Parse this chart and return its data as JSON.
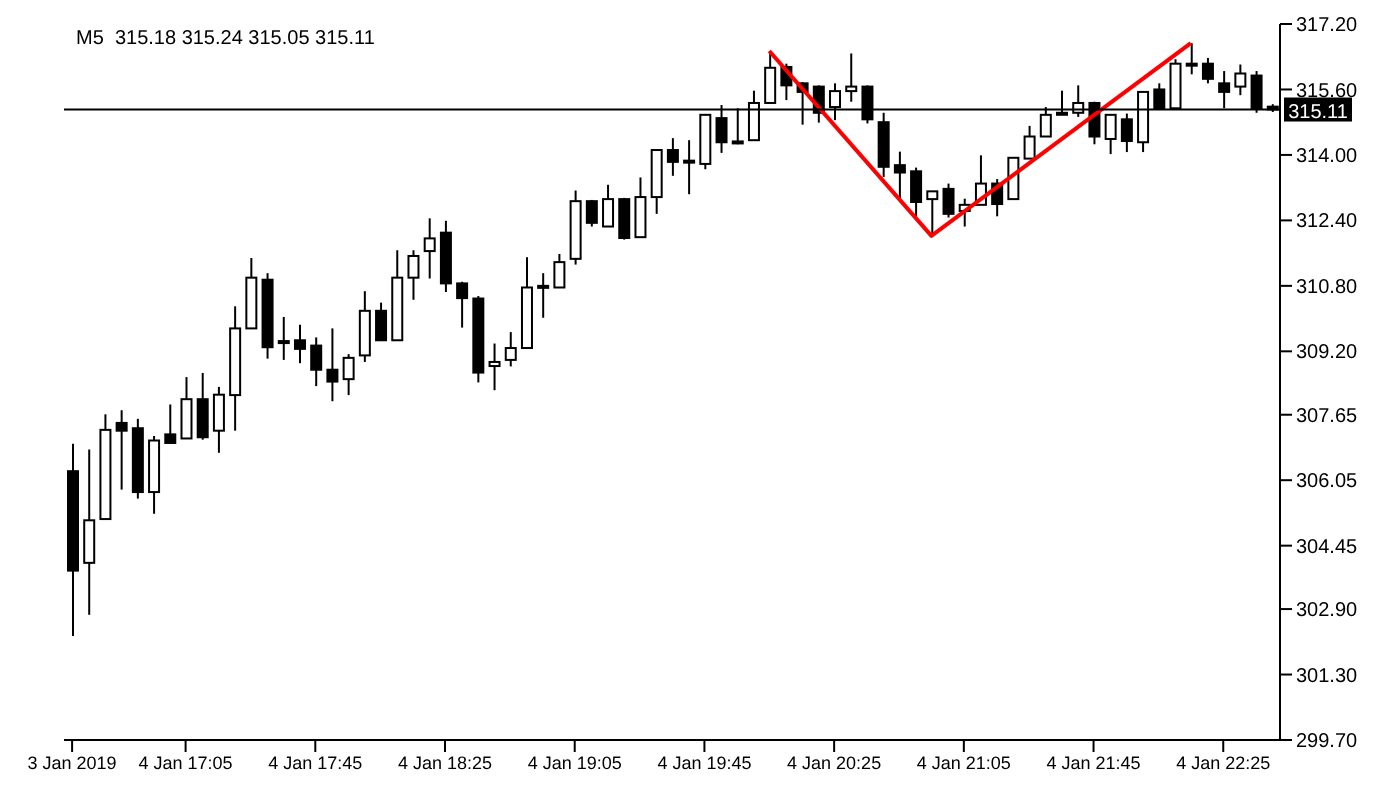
{
  "chart_data": {
    "type": "candlestick",
    "title": "M5  315.18 315.24 315.05 315.11",
    "color": "#000000",
    "categories": [
      "3 Jan 2019",
      null,
      null,
      null,
      null,
      null,
      null,
      "4 Jan 17:05",
      null,
      null,
      null,
      null,
      null,
      null,
      null,
      "4 Jan 17:45",
      null,
      null,
      null,
      null,
      null,
      null,
      null,
      "4 Jan 18:25",
      null,
      null,
      null,
      null,
      null,
      null,
      null,
      "4 Jan 19:05",
      null,
      null,
      null,
      null,
      null,
      null,
      null,
      "4 Jan 19:45",
      null,
      null,
      null,
      null,
      null,
      null,
      null,
      "4 Jan 20:25",
      null,
      null,
      null,
      null,
      null,
      null,
      null,
      "4 Jan 21:05",
      null,
      null,
      null,
      null,
      null,
      null,
      null,
      "4 Jan 21:45",
      null,
      null,
      null,
      null,
      null,
      null,
      null,
      "4 Jan 22:25",
      null,
      null,
      null
    ],
    "ohlc": [
      [
        306.27,
        306.94,
        302.24,
        303.84
      ],
      [
        304.03,
        306.8,
        302.76,
        305.07
      ],
      [
        305.1,
        307.66,
        305.1,
        307.28
      ],
      [
        307.45,
        307.76,
        305.82,
        307.26
      ],
      [
        307.32,
        307.55,
        305.6,
        305.76
      ],
      [
        305.76,
        307.13,
        305.23,
        307.02
      ],
      [
        307.17,
        307.9,
        306.96,
        306.96
      ],
      [
        307.07,
        308.57,
        307.07,
        308.03
      ],
      [
        308.03,
        308.67,
        307.04,
        307.1
      ],
      [
        307.26,
        308.33,
        306.72,
        308.14
      ],
      [
        308.13,
        310.3,
        307.26,
        309.76
      ],
      [
        309.76,
        311.48,
        309.76,
        311.0
      ],
      [
        310.95,
        311.11,
        309.02,
        309.3
      ],
      [
        309.45,
        310.04,
        308.99,
        309.41
      ],
      [
        309.47,
        309.85,
        308.91,
        309.26
      ],
      [
        309.34,
        309.54,
        308.35,
        308.75
      ],
      [
        308.75,
        309.76,
        307.98,
        308.46
      ],
      [
        308.52,
        309.13,
        308.13,
        309.04
      ],
      [
        309.1,
        310.67,
        308.94,
        310.19
      ],
      [
        310.19,
        310.39,
        309.47,
        309.47
      ],
      [
        309.47,
        311.67,
        309.47,
        311.0
      ],
      [
        311.0,
        311.67,
        310.46,
        311.53
      ],
      [
        311.65,
        312.45,
        310.98,
        311.96
      ],
      [
        312.1,
        312.39,
        310.65,
        310.86
      ],
      [
        310.86,
        310.9,
        309.78,
        310.5
      ],
      [
        310.49,
        310.55,
        308.44,
        308.68
      ],
      [
        308.84,
        309.39,
        308.25,
        308.94
      ],
      [
        308.99,
        309.67,
        308.83,
        309.28
      ],
      [
        309.28,
        311.5,
        309.28,
        310.76
      ],
      [
        310.8,
        311.11,
        310.02,
        310.76
      ],
      [
        310.76,
        311.58,
        310.76,
        311.38
      ],
      [
        311.46,
        313.13,
        311.32,
        312.87
      ],
      [
        312.87,
        312.9,
        312.25,
        312.34
      ],
      [
        312.25,
        313.27,
        312.25,
        312.92
      ],
      [
        312.92,
        312.95,
        311.93,
        311.97
      ],
      [
        311.99,
        313.45,
        311.99,
        312.97
      ],
      [
        312.97,
        314.12,
        312.56,
        314.12
      ],
      [
        314.12,
        314.41,
        313.49,
        313.83
      ],
      [
        313.86,
        314.36,
        313.04,
        313.82
      ],
      [
        313.78,
        315.0,
        313.65,
        314.98
      ],
      [
        314.9,
        315.22,
        314.05,
        314.31
      ],
      [
        314.33,
        315.14,
        314.26,
        314.29
      ],
      [
        314.36,
        315.57,
        314.36,
        315.27
      ],
      [
        315.27,
        316.54,
        315.27,
        316.13
      ],
      [
        316.15,
        316.23,
        315.34,
        315.7
      ],
      [
        315.75,
        315.78,
        314.74,
        315.54
      ],
      [
        315.67,
        315.7,
        314.79,
        315.03
      ],
      [
        315.17,
        315.75,
        314.85,
        315.56
      ],
      [
        315.56,
        316.48,
        315.3,
        315.67
      ],
      [
        315.67,
        315.7,
        314.77,
        314.87
      ],
      [
        314.8,
        315.03,
        313.46,
        313.71
      ],
      [
        313.75,
        314.08,
        312.9,
        313.57
      ],
      [
        313.6,
        313.69,
        312.5,
        312.85
      ],
      [
        312.92,
        313.11,
        312.02,
        313.11
      ],
      [
        313.17,
        313.3,
        312.47,
        312.56
      ],
      [
        312.63,
        312.93,
        312.25,
        312.78
      ],
      [
        312.78,
        313.99,
        312.78,
        313.3
      ],
      [
        313.3,
        313.41,
        312.5,
        312.8
      ],
      [
        312.92,
        313.93,
        312.92,
        313.93
      ],
      [
        313.91,
        314.71,
        313.91,
        314.45
      ],
      [
        314.45,
        315.17,
        314.45,
        314.98
      ],
      [
        315.0,
        315.57,
        314.98,
        315.03
      ],
      [
        315.03,
        315.7,
        314.93,
        315.27
      ],
      [
        315.27,
        315.3,
        314.26,
        314.45
      ],
      [
        314.39,
        315.0,
        314.02,
        314.98
      ],
      [
        314.87,
        315.01,
        314.07,
        314.34
      ],
      [
        314.31,
        315.54,
        314.07,
        315.54
      ],
      [
        315.6,
        315.75,
        315.14,
        315.14
      ],
      [
        315.14,
        316.34,
        315.14,
        316.23
      ],
      [
        316.23,
        316.73,
        315.97,
        316.19
      ],
      [
        316.23,
        316.37,
        315.75,
        315.86
      ],
      [
        315.75,
        316.05,
        315.14,
        315.54
      ],
      [
        315.67,
        316.21,
        315.46,
        315.99
      ],
      [
        315.94,
        316.05,
        315.03,
        315.14
      ],
      [
        315.18,
        315.24,
        315.05,
        315.11
      ]
    ],
    "series": [
      {
        "type": "line",
        "color": "#ff0000",
        "values": [
          null,
          null,
          null,
          null,
          null,
          null,
          null,
          null,
          null,
          null,
          null,
          null,
          null,
          null,
          null,
          null,
          null,
          null,
          null,
          null,
          null,
          null,
          null,
          null,
          null,
          null,
          null,
          null,
          null,
          null,
          null,
          null,
          null,
          null,
          null,
          null,
          null,
          null,
          null,
          null,
          null,
          null,
          null,
          316.54,
          null,
          null,
          null,
          null,
          null,
          null,
          null,
          null,
          null,
          312.02,
          null,
          null,
          null,
          null,
          null,
          null,
          null,
          null,
          null,
          null,
          null,
          null,
          null,
          null,
          null,
          316.73,
          null,
          null,
          null,
          null,
          null
        ]
      }
    ],
    "ylim": [
      299.7,
      317.2
    ],
    "yticks": [
      {
        "value": 299.7,
        "label": "299.70"
      },
      {
        "value": 301.3,
        "label": "301.30"
      },
      {
        "value": 302.9,
        "label": "302.90"
      },
      {
        "value": 304.45,
        "label": "304.45"
      },
      {
        "value": 306.05,
        "label": "306.05"
      },
      {
        "value": 307.65,
        "label": "307.65"
      },
      {
        "value": 309.2,
        "label": "309.20"
      },
      {
        "value": 310.8,
        "label": "310.80"
      },
      {
        "value": 312.4,
        "label": "312.40"
      },
      {
        "value": 314.0,
        "label": "314.00"
      },
      {
        "value": 315.6,
        "label": "315.60"
      },
      {
        "value": 317.2,
        "label": "317.20"
      }
    ],
    "ref_lines": [
      {
        "axis": "y",
        "value": 315.11,
        "label": "315.11",
        "color": "#000000"
      }
    ]
  }
}
